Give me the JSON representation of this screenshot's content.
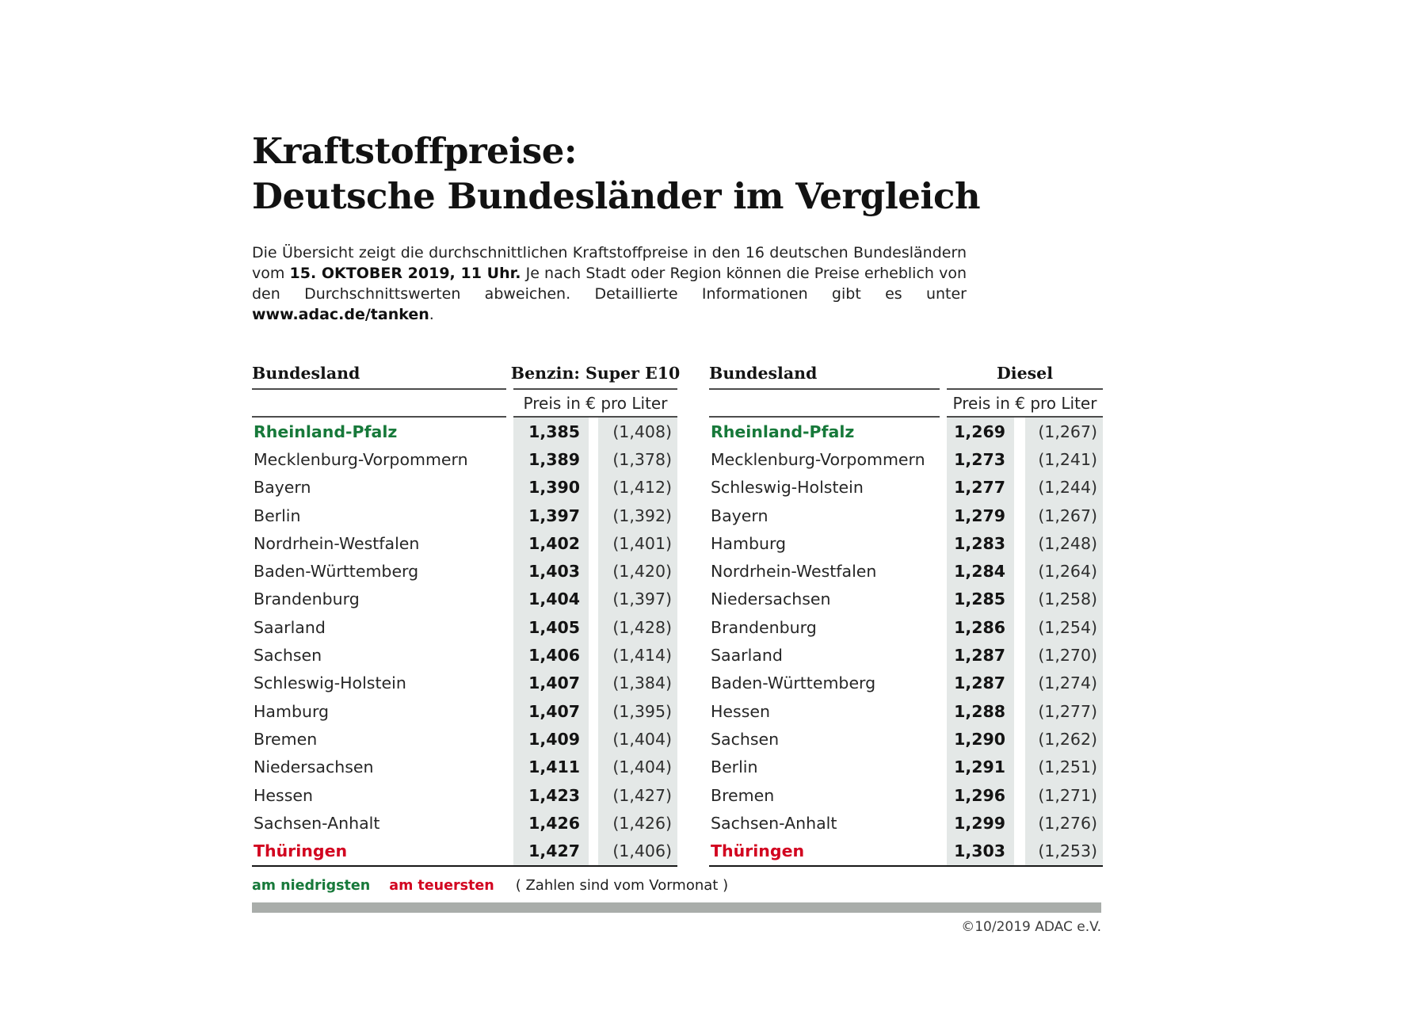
{
  "page": {
    "title_line1": "Kraftstoffpreise:",
    "title_line2": "Deutsche Bundesländer im Vergleich"
  },
  "intro": {
    "seg1": "Die Übersicht zeigt die durchschnittlichen Kraftstoffpreise in den 16 deutschen Bundesländern vom ",
    "bold_date": "15. OKTOBER 2019, 11 Uhr.",
    "seg2": " Je nach Stadt oder Region können die Preise erheblich von den Durchschnittswerten abweichen. Detaillierte Informationen gibt es unter ",
    "bold_url": "www.adac.de/tanken",
    "seg3": "."
  },
  "tables": [
    {
      "name_header": "Bundesland",
      "fuel_header": "Benzin: Super E10",
      "unit_header": "Preis in € pro Liter",
      "rows": [
        {
          "name": "Rheinland-Pfalz",
          "price": "1,385",
          "prev": "(1,408)",
          "highlight": "lowest"
        },
        {
          "name": "Mecklenburg-Vorpommern",
          "price": "1,389",
          "prev": "(1,378)",
          "highlight": null
        },
        {
          "name": "Bayern",
          "price": "1,390",
          "prev": "(1,412)",
          "highlight": null
        },
        {
          "name": "Berlin",
          "price": "1,397",
          "prev": "(1,392)",
          "highlight": null
        },
        {
          "name": "Nordrhein-Westfalen",
          "price": "1,402",
          "prev": "(1,401)",
          "highlight": null
        },
        {
          "name": "Baden-Württemberg",
          "price": "1,403",
          "prev": "(1,420)",
          "highlight": null
        },
        {
          "name": "Brandenburg",
          "price": "1,404",
          "prev": "(1,397)",
          "highlight": null
        },
        {
          "name": "Saarland",
          "price": "1,405",
          "prev": "(1,428)",
          "highlight": null
        },
        {
          "name": "Sachsen",
          "price": "1,406",
          "prev": "(1,414)",
          "highlight": null
        },
        {
          "name": "Schleswig-Holstein",
          "price": "1,407",
          "prev": "(1,384)",
          "highlight": null
        },
        {
          "name": "Hamburg",
          "price": "1,407",
          "prev": "(1,395)",
          "highlight": null
        },
        {
          "name": "Bremen",
          "price": "1,409",
          "prev": "(1,404)",
          "highlight": null
        },
        {
          "name": "Niedersachsen",
          "price": "1,411",
          "prev": "(1,404)",
          "highlight": null
        },
        {
          "name": "Hessen",
          "price": "1,423",
          "prev": "(1,427)",
          "highlight": null
        },
        {
          "name": "Sachsen-Anhalt",
          "price": "1,426",
          "prev": "(1,426)",
          "highlight": null
        },
        {
          "name": "Thüringen",
          "price": "1,427",
          "prev": "(1,406)",
          "highlight": "highest"
        }
      ]
    },
    {
      "name_header": "Bundesland",
      "fuel_header": "Diesel",
      "unit_header": "Preis in € pro Liter",
      "rows": [
        {
          "name": "Rheinland-Pfalz",
          "price": "1,269",
          "prev": "(1,267)",
          "highlight": "lowest"
        },
        {
          "name": "Mecklenburg-Vorpommern",
          "price": "1,273",
          "prev": "(1,241)",
          "highlight": null
        },
        {
          "name": "Schleswig-Holstein",
          "price": "1,277",
          "prev": "(1,244)",
          "highlight": null
        },
        {
          "name": "Bayern",
          "price": "1,279",
          "prev": "(1,267)",
          "highlight": null
        },
        {
          "name": "Hamburg",
          "price": "1,283",
          "prev": "(1,248)",
          "highlight": null
        },
        {
          "name": "Nordrhein-Westfalen",
          "price": "1,284",
          "prev": "(1,264)",
          "highlight": null
        },
        {
          "name": "Niedersachsen",
          "price": "1,285",
          "prev": "(1,258)",
          "highlight": null
        },
        {
          "name": "Brandenburg",
          "price": "1,286",
          "prev": "(1,254)",
          "highlight": null
        },
        {
          "name": "Saarland",
          "price": "1,287",
          "prev": "(1,270)",
          "highlight": null
        },
        {
          "name": "Baden-Württemberg",
          "price": "1,287",
          "prev": "(1,274)",
          "highlight": null
        },
        {
          "name": "Hessen",
          "price": "1,288",
          "prev": "(1,277)",
          "highlight": null
        },
        {
          "name": "Sachsen",
          "price": "1,290",
          "prev": "(1,262)",
          "highlight": null
        },
        {
          "name": "Berlin",
          "price": "1,291",
          "prev": "(1,251)",
          "highlight": null
        },
        {
          "name": "Bremen",
          "price": "1,296",
          "prev": "(1,271)",
          "highlight": null
        },
        {
          "name": "Sachsen-Anhalt",
          "price": "1,299",
          "prev": "(1,276)",
          "highlight": null
        },
        {
          "name": "Thüringen",
          "price": "1,303",
          "prev": "(1,253)",
          "highlight": "highest"
        }
      ]
    }
  ],
  "legend": {
    "lowest": "am niedrigsten",
    "highest": "am teuersten",
    "note": "( Zahlen sind vom Vormonat )"
  },
  "footer": {
    "copyright": "©10/2019 ADAC e.V."
  },
  "colors": {
    "green": "#17793a",
    "red": "#d20420",
    "band": "#e4e8e7",
    "bar": "#a9adaa"
  },
  "chart_data": [
    {
      "type": "table",
      "title": "Benzin: Super E10",
      "subtitle": "Preis in € pro Liter",
      "columns": [
        "Bundesland",
        "Preis in € pro Liter (15.10.2019, 11 Uhr)",
        "Vormonat"
      ],
      "rows": [
        [
          "Rheinland-Pfalz",
          1.385,
          1.408
        ],
        [
          "Mecklenburg-Vorpommern",
          1.389,
          1.378
        ],
        [
          "Bayern",
          1.39,
          1.412
        ],
        [
          "Berlin",
          1.397,
          1.392
        ],
        [
          "Nordrhein-Westfalen",
          1.402,
          1.401
        ],
        [
          "Baden-Württemberg",
          1.403,
          1.42
        ],
        [
          "Brandenburg",
          1.404,
          1.397
        ],
        [
          "Saarland",
          1.405,
          1.428
        ],
        [
          "Sachsen",
          1.406,
          1.414
        ],
        [
          "Schleswig-Holstein",
          1.407,
          1.384
        ],
        [
          "Hamburg",
          1.407,
          1.395
        ],
        [
          "Bremen",
          1.409,
          1.404
        ],
        [
          "Niedersachsen",
          1.411,
          1.404
        ],
        [
          "Hessen",
          1.423,
          1.427
        ],
        [
          "Sachsen-Anhalt",
          1.426,
          1.426
        ],
        [
          "Thüringen",
          1.427,
          1.406
        ]
      ],
      "lowest": "Rheinland-Pfalz",
      "highest": "Thüringen"
    },
    {
      "type": "table",
      "title": "Diesel",
      "subtitle": "Preis in € pro Liter",
      "columns": [
        "Bundesland",
        "Preis in € pro Liter (15.10.2019, 11 Uhr)",
        "Vormonat"
      ],
      "rows": [
        [
          "Rheinland-Pfalz",
          1.269,
          1.267
        ],
        [
          "Mecklenburg-Vorpommern",
          1.273,
          1.241
        ],
        [
          "Schleswig-Holstein",
          1.277,
          1.244
        ],
        [
          "Bayern",
          1.279,
          1.267
        ],
        [
          "Hamburg",
          1.283,
          1.248
        ],
        [
          "Nordrhein-Westfalen",
          1.284,
          1.264
        ],
        [
          "Niedersachsen",
          1.285,
          1.258
        ],
        [
          "Brandenburg",
          1.286,
          1.254
        ],
        [
          "Saarland",
          1.287,
          1.27
        ],
        [
          "Baden-Württemberg",
          1.287,
          1.274
        ],
        [
          "Hessen",
          1.288,
          1.277
        ],
        [
          "Sachsen",
          1.29,
          1.262
        ],
        [
          "Berlin",
          1.291,
          1.251
        ],
        [
          "Bremen",
          1.296,
          1.271
        ],
        [
          "Sachsen-Anhalt",
          1.299,
          1.276
        ],
        [
          "Thüringen",
          1.303,
          1.253
        ]
      ],
      "lowest": "Rheinland-Pfalz",
      "highest": "Thüringen"
    }
  ]
}
